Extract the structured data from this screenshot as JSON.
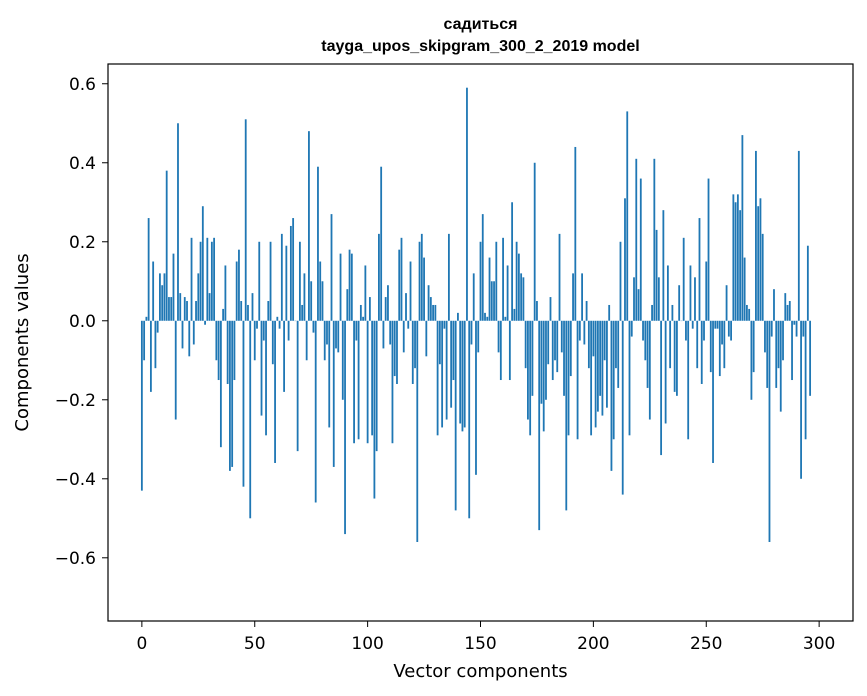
{
  "chart_data": {
    "type": "bar",
    "title": "садиться",
    "subtitle": "tayga_upos_skipgram_300_2_2019 model",
    "xlabel": "Vector components",
    "ylabel": "Components values",
    "xlim": [
      -15,
      315
    ],
    "ylim": [
      -0.76,
      0.65
    ],
    "xticks": [
      0,
      50,
      100,
      150,
      200,
      250,
      300
    ],
    "yticks": [
      -0.6,
      -0.4,
      -0.2,
      0.0,
      0.2,
      0.4,
      0.6
    ],
    "ytick_labels": [
      "−0.6",
      "−0.4",
      "−0.2",
      "0.0",
      "0.2",
      "0.4",
      "0.6"
    ],
    "bar_color": "#1f77b4",
    "grid": false,
    "values": [
      -0.43,
      -0.1,
      0.01,
      0.26,
      -0.18,
      0.15,
      -0.12,
      -0.03,
      0.12,
      0.09,
      0.12,
      0.38,
      0.06,
      0.06,
      0.17,
      -0.25,
      0.5,
      0.07,
      -0.07,
      0.06,
      0.05,
      -0.09,
      0.21,
      -0.06,
      0.05,
      0.12,
      0.2,
      0.29,
      -0.01,
      0.21,
      0.07,
      0.2,
      0.21,
      -0.1,
      -0.15,
      -0.32,
      0.03,
      0.14,
      -0.16,
      -0.38,
      -0.37,
      -0.15,
      0.15,
      0.18,
      0.05,
      -0.42,
      0.51,
      0.04,
      -0.5,
      0.07,
      -0.1,
      -0.02,
      0.2,
      -0.24,
      -0.05,
      -0.29,
      0.05,
      0.2,
      -0.11,
      -0.36,
      0.01,
      -0.02,
      0.22,
      -0.18,
      0.19,
      -0.05,
      0.24,
      0.26,
      0.0,
      -0.33,
      0.2,
      0.04,
      0.12,
      -0.1,
      0.48,
      0.1,
      -0.03,
      -0.46,
      0.39,
      0.15,
      0.1,
      -0.1,
      -0.06,
      -0.27,
      0.27,
      -0.37,
      -0.07,
      -0.08,
      0.17,
      -0.2,
      -0.54,
      0.08,
      0.18,
      0.17,
      -0.31,
      -0.05,
      -0.3,
      0.04,
      0.01,
      0.14,
      -0.31,
      0.06,
      -0.29,
      -0.45,
      -0.33,
      0.22,
      0.39,
      -0.07,
      0.06,
      0.09,
      -0.06,
      -0.31,
      -0.14,
      -0.16,
      0.18,
      0.21,
      -0.08,
      0.07,
      -0.02,
      0.15,
      -0.16,
      -0.12,
      -0.56,
      0.2,
      0.22,
      0.16,
      -0.09,
      0.09,
      0.06,
      0.04,
      0.04,
      -0.29,
      -0.11,
      -0.27,
      -0.02,
      -0.25,
      0.22,
      -0.22,
      -0.15,
      -0.48,
      0.02,
      -0.26,
      -0.28,
      -0.27,
      0.59,
      -0.5,
      -0.06,
      0.12,
      -0.39,
      -0.08,
      0.2,
      0.27,
      0.02,
      0.01,
      0.16,
      0.1,
      0.1,
      0.2,
      -0.08,
      -0.15,
      0.21,
      0.01,
      0.14,
      -0.15,
      0.3,
      0.03,
      0.2,
      0.17,
      0.12,
      0.11,
      -0.12,
      -0.25,
      -0.29,
      -0.19,
      0.4,
      0.05,
      -0.53,
      -0.21,
      -0.28,
      -0.2,
      -0.11,
      0.06,
      -0.15,
      -0.1,
      -0.13,
      0.22,
      -0.08,
      -0.19,
      -0.48,
      -0.29,
      -0.14,
      0.12,
      0.44,
      -0.3,
      -0.05,
      0.12,
      -0.06,
      0.05,
      -0.12,
      -0.29,
      -0.09,
      -0.27,
      -0.23,
      -0.19,
      -0.24,
      -0.1,
      -0.22,
      0.04,
      -0.38,
      -0.3,
      -0.12,
      -0.17,
      0.2,
      -0.44,
      0.31,
      0.53,
      -0.29,
      -0.04,
      0.11,
      0.41,
      0.08,
      0.36,
      -0.05,
      -0.1,
      -0.17,
      -0.25,
      0.04,
      0.41,
      0.23,
      0.11,
      -0.34,
      0.28,
      -0.26,
      0.14,
      -0.12,
      0.04,
      -0.18,
      -0.19,
      0.09,
      0.0,
      0.21,
      -0.05,
      -0.3,
      0.14,
      -0.02,
      0.11,
      -0.12,
      0.26,
      -0.16,
      -0.05,
      0.15,
      0.36,
      -0.13,
      -0.36,
      -0.02,
      -0.02,
      -0.14,
      -0.06,
      -0.12,
      0.09,
      -0.04,
      -0.05,
      0.32,
      0.3,
      0.32,
      0.28,
      0.47,
      0.16,
      0.04,
      0.03,
      -0.2,
      -0.13,
      0.43,
      0.29,
      0.31,
      0.22,
      -0.08,
      -0.17,
      -0.56,
      -0.04,
      0.08,
      -0.17,
      -0.12,
      -0.23,
      -0.1,
      0.07,
      0.04,
      0.05,
      -0.15,
      -0.01,
      -0.04,
      0.43,
      -0.4,
      -0.04,
      -0.3,
      0.19,
      -0.19
    ]
  }
}
